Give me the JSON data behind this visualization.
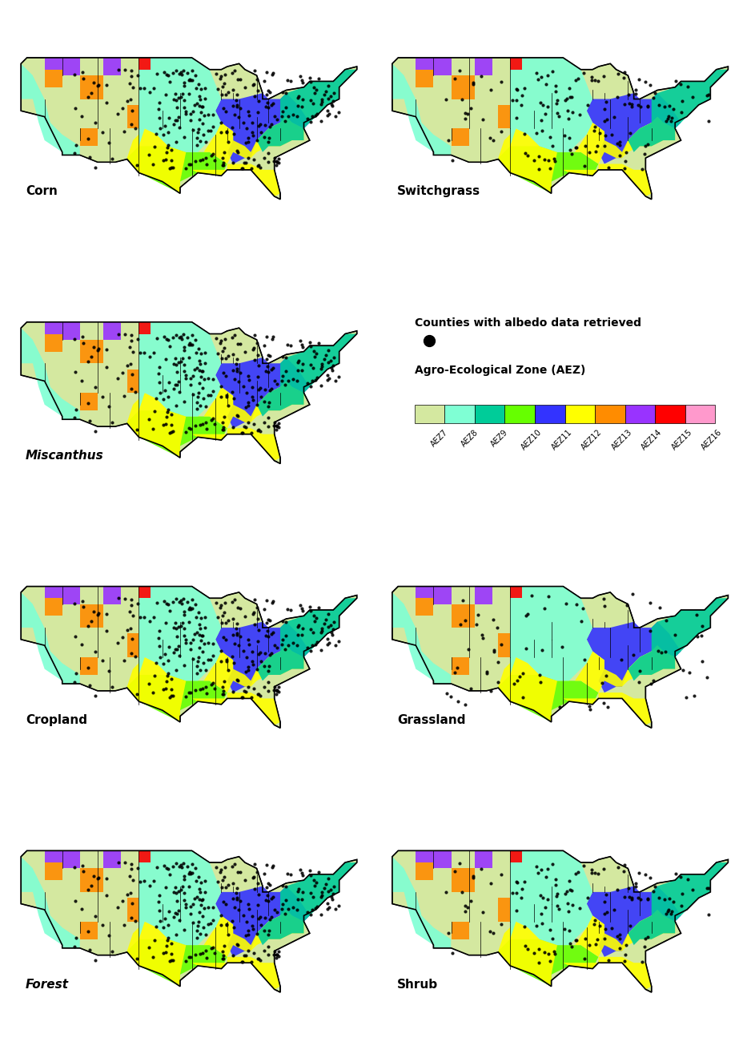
{
  "figure_width": 9.43,
  "figure_height": 13.1,
  "background_color": "#ffffff",
  "panels": [
    {
      "label": "Corn",
      "label_style": "normal",
      "row": 0,
      "col": 0
    },
    {
      "label": "Switchgrass",
      "label_style": "normal",
      "row": 0,
      "col": 1
    },
    {
      "label": "Miscanthus",
      "label_style": "italic",
      "row": 1,
      "col": 0
    },
    {
      "label": "Cropland",
      "label_style": "normal",
      "row": 2,
      "col": 0
    },
    {
      "label": "Grassland",
      "label_style": "normal",
      "row": 2,
      "col": 1
    },
    {
      "label": "Forest",
      "label_style": "italic",
      "row": 3,
      "col": 0
    },
    {
      "label": "Shrub",
      "label_style": "normal",
      "row": 3,
      "col": 1
    }
  ],
  "aez_colors": [
    "#d4e8a0",
    "#7fffd4",
    "#00cc99",
    "#66ff00",
    "#3333ff",
    "#ffff00",
    "#ff8c00",
    "#9933ff",
    "#ff0000",
    "#ff99cc"
  ],
  "aez_labels": [
    "AEZ7",
    "AEZ8",
    "AEZ9",
    "AEZ10",
    "AEZ11",
    "AEZ12",
    "AEZ13",
    "AEZ14",
    "AEZ15",
    "AEZ16"
  ],
  "legend_title1": "Counties with albedo data retrieved",
  "legend_title2": "Agro-Ecological Zone (AEZ)",
  "dot_label": "●",
  "label_fontsize": 11,
  "legend_fontsize": 10,
  "aez_label_fontsize": 8
}
